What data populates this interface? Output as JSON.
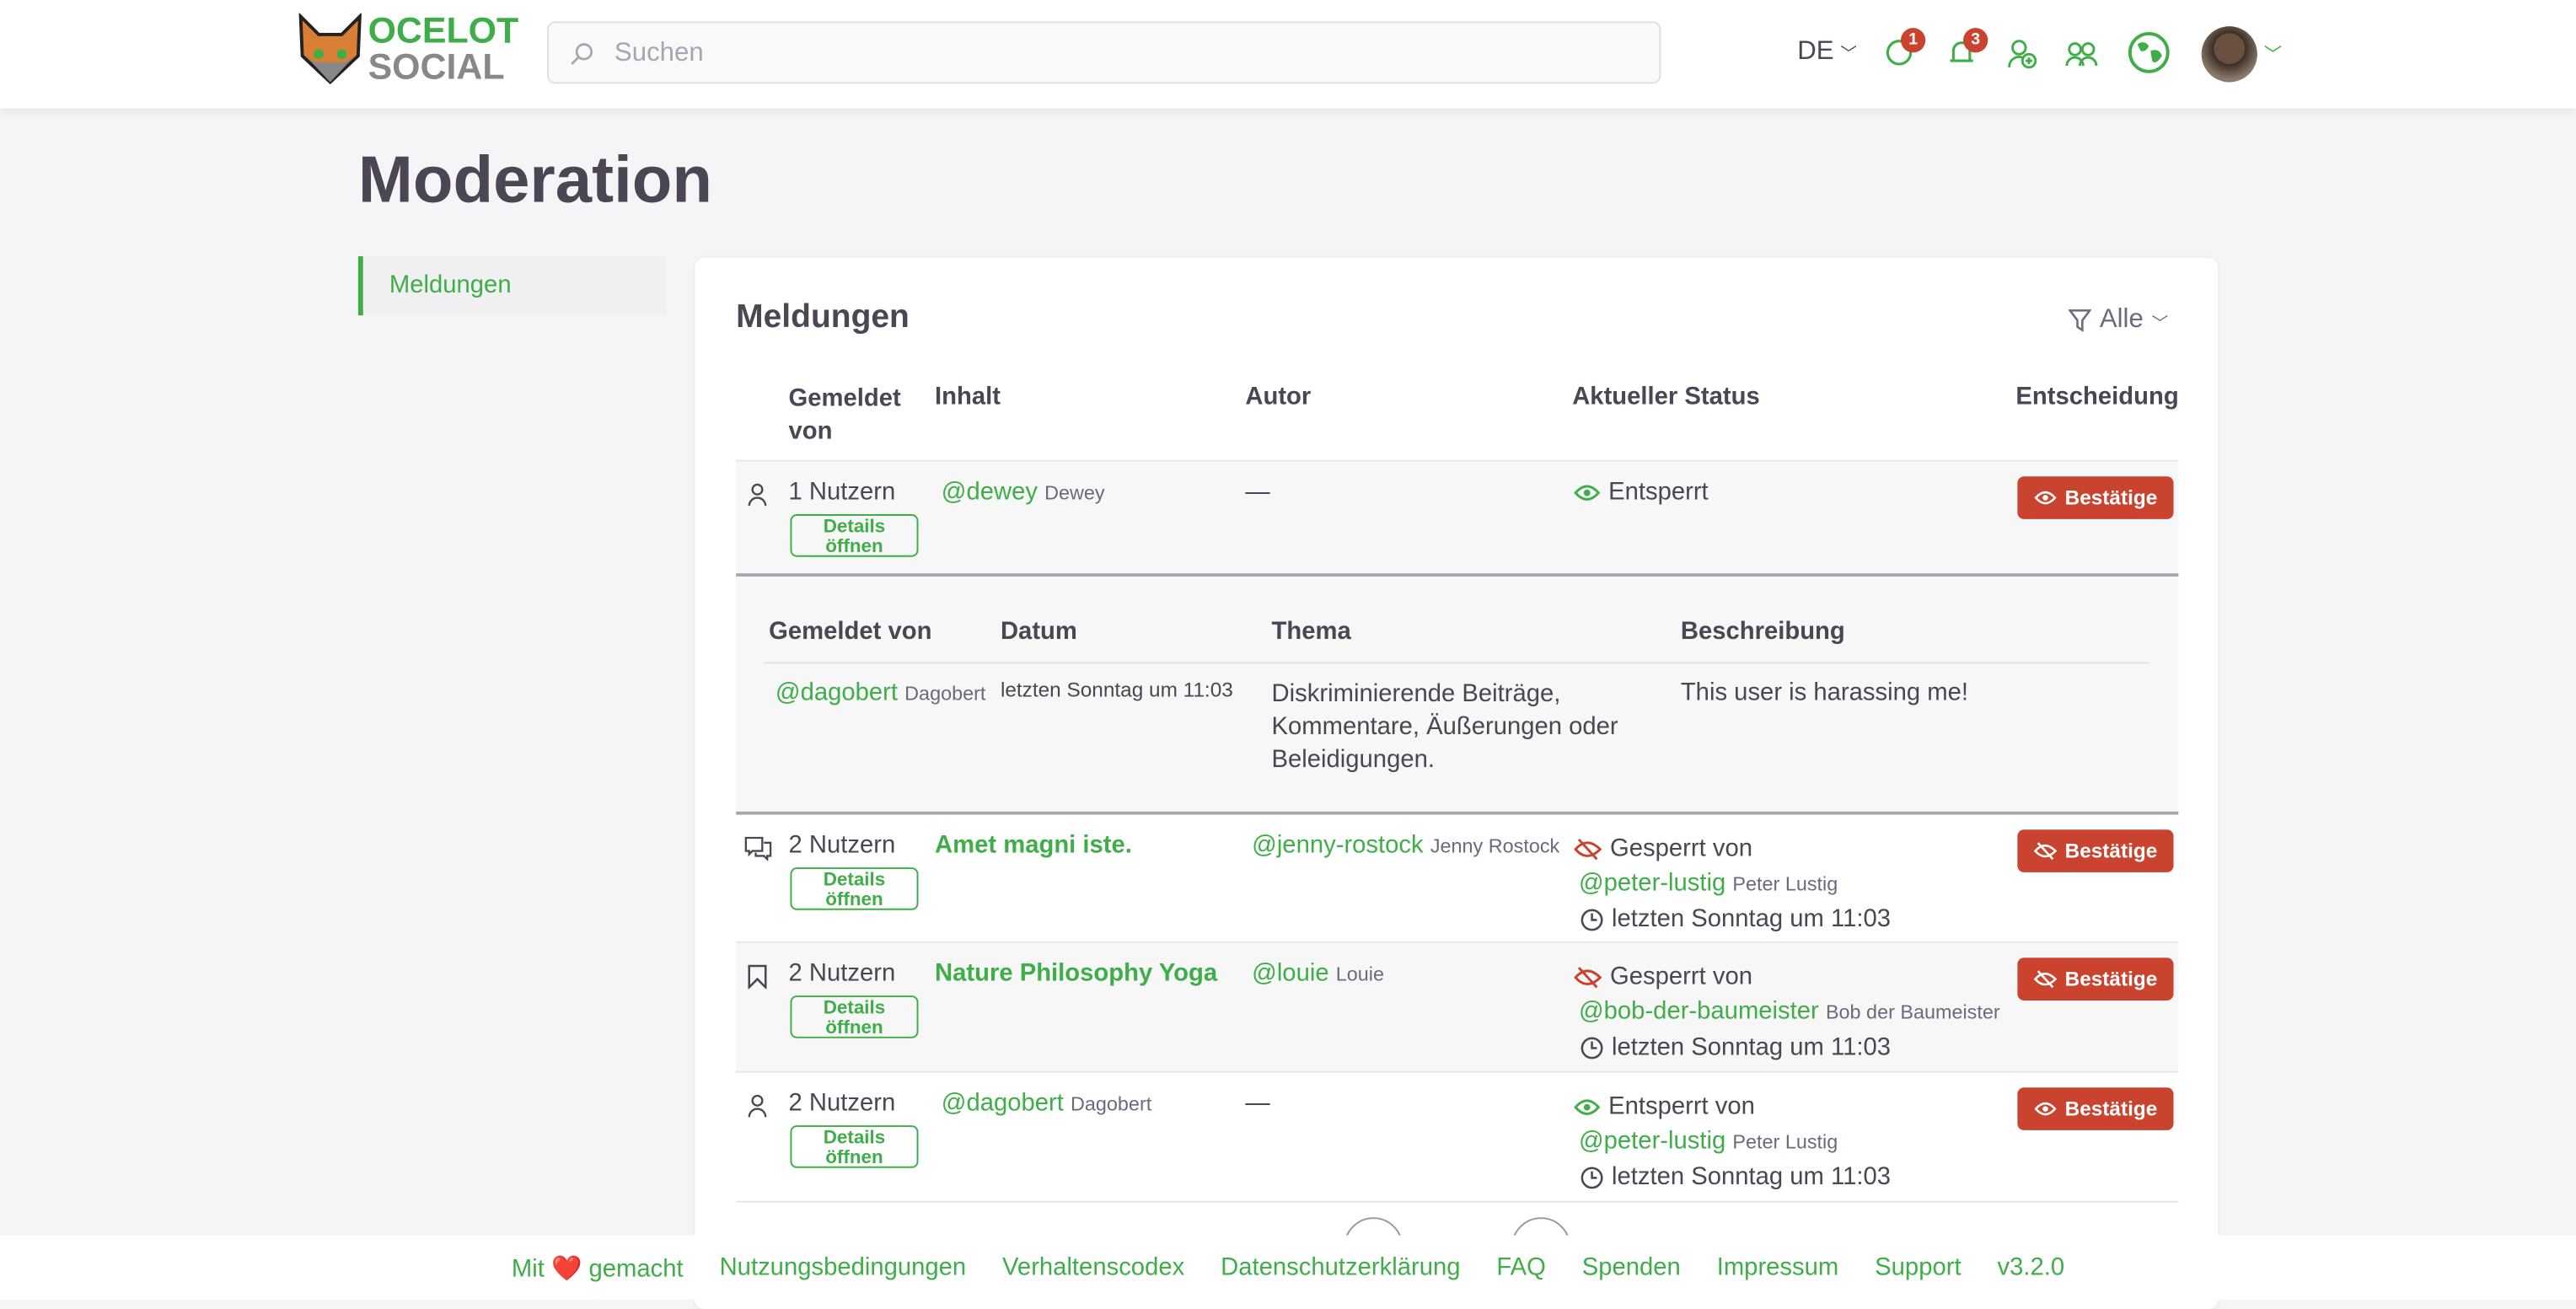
{
  "header": {
    "logo_line1": "OCELOT",
    "logo_line2": "SOCIAL",
    "search_placeholder": "Suchen",
    "language": "DE",
    "chat_count": "1",
    "notification_count": "3",
    "colors": {
      "accent": "#3fae49",
      "danger": "#c9432f"
    }
  },
  "page_title": "Moderation",
  "sidebar": {
    "items": [
      {
        "label": "Meldungen",
        "active": true
      }
    ]
  },
  "card": {
    "title": "Meldungen",
    "filter_label": "Alle",
    "columns": [
      "Gemeldet von",
      "Inhalt",
      "Autor",
      "Aktueller Status",
      "Entscheidung"
    ],
    "details_label": "Details öffnen",
    "rows": [
      {
        "type_icon": "user-icon",
        "reporters": "1 Nutzern",
        "content_handle": "@dewey",
        "content_name": "Dewey",
        "author": "—",
        "status_icon": "eye-icon",
        "status": "Entsperrt",
        "decision": "Bestätige"
      },
      {
        "type_icon": "comment-icon",
        "reporters": "2 Nutzern",
        "content_title": "Amet magni iste.",
        "author_handle": "@jenny-rostock",
        "author_name": "Jenny Rostock",
        "status_icon": "eye-slash-icon",
        "status": "Gesperrt von",
        "status_by_handle": "@peter-lustig",
        "status_by_name": "Peter Lustig",
        "status_time": "letzten Sonntag um 11:03",
        "decision": "Bestätige"
      },
      {
        "type_icon": "bookmark-icon",
        "reporters": "2 Nutzern",
        "content_title": "Nature Philosophy Yoga",
        "author_handle": "@louie",
        "author_name": "Louie",
        "status_icon": "eye-slash-icon",
        "status": "Gesperrt von",
        "status_by_handle": "@bob-der-baumeister",
        "status_by_name": "Bob der Baumeister",
        "status_time": "letzten Sonntag um 11:03",
        "decision": "Bestätige"
      },
      {
        "type_icon": "user-icon",
        "reporters": "2 Nutzern",
        "content_handle": "@dagobert",
        "content_name": "Dagobert",
        "author": "—",
        "status_icon": "eye-icon",
        "status": "Entsperrt von",
        "status_by_handle": "@peter-lustig",
        "status_by_name": "Peter Lustig",
        "status_time": "letzten Sonntag um 11:03",
        "decision": "Bestätige"
      }
    ],
    "detail": {
      "columns": [
        "Gemeldet von",
        "Datum",
        "Thema",
        "Beschreibung"
      ],
      "rows": [
        {
          "handle": "@dagobert",
          "name": "Dagobert",
          "date": "letzten Sonntag um 11:03",
          "topic": "Diskriminierende Beiträge, Kommentare, Äußerungen oder Beleidigungen.",
          "description": "This user is harassing me!"
        }
      ]
    }
  },
  "footer": {
    "made_prefix": "Mit",
    "made_suffix": "gemacht",
    "links": [
      "Nutzungsbedingungen",
      "Verhaltenscodex",
      "Datenschutzerklärung",
      "FAQ",
      "Spenden",
      "Impressum",
      "Support",
      "v3.2.0"
    ]
  }
}
